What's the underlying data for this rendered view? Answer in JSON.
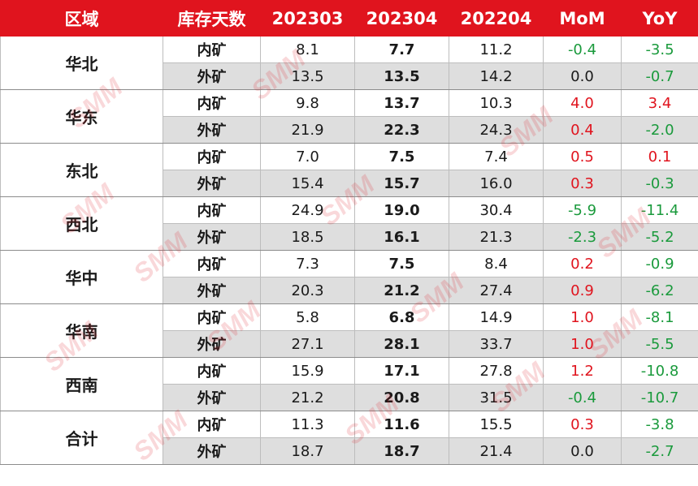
{
  "header": {
    "region": "区域",
    "type": "库存天数",
    "col1": "202303",
    "col2": "202304",
    "col3": "202204",
    "mom": "MoM",
    "yoy": "YoY"
  },
  "groups": [
    {
      "region": "华北",
      "rows": [
        {
          "type": "内矿",
          "v1": "8.1",
          "v2": "7.7",
          "v3": "11.2",
          "mom": "-0.4",
          "yoy": "-3.5"
        },
        {
          "type": "外矿",
          "v1": "13.5",
          "v2": "13.5",
          "v3": "14.2",
          "mom": "0.0",
          "yoy": "-0.7"
        }
      ]
    },
    {
      "region": "华东",
      "rows": [
        {
          "type": "内矿",
          "v1": "9.8",
          "v2": "13.7",
          "v3": "10.3",
          "mom": "4.0",
          "yoy": "3.4"
        },
        {
          "type": "外矿",
          "v1": "21.9",
          "v2": "22.3",
          "v3": "24.3",
          "mom": "0.4",
          "yoy": "-2.0"
        }
      ]
    },
    {
      "region": "东北",
      "rows": [
        {
          "type": "内矿",
          "v1": "7.0",
          "v2": "7.5",
          "v3": "7.4",
          "mom": "0.5",
          "yoy": "0.1"
        },
        {
          "type": "外矿",
          "v1": "15.4",
          "v2": "15.7",
          "v3": "16.0",
          "mom": "0.3",
          "yoy": "-0.3"
        }
      ]
    },
    {
      "region": "西北",
      "rows": [
        {
          "type": "内矿",
          "v1": "24.9",
          "v2": "19.0",
          "v3": "30.4",
          "mom": "-5.9",
          "yoy": "-11.4"
        },
        {
          "type": "外矿",
          "v1": "18.5",
          "v2": "16.1",
          "v3": "21.3",
          "mom": "-2.3",
          "yoy": "-5.2"
        }
      ]
    },
    {
      "region": "华中",
      "rows": [
        {
          "type": "内矿",
          "v1": "7.3",
          "v2": "7.5",
          "v3": "8.4",
          "mom": "0.2",
          "yoy": "-0.9"
        },
        {
          "type": "外矿",
          "v1": "20.3",
          "v2": "21.2",
          "v3": "27.4",
          "mom": "0.9",
          "yoy": "-6.2"
        }
      ]
    },
    {
      "region": "华南",
      "rows": [
        {
          "type": "内矿",
          "v1": "5.8",
          "v2": "6.8",
          "v3": "14.9",
          "mom": "1.0",
          "yoy": "-8.1"
        },
        {
          "type": "外矿",
          "v1": "27.1",
          "v2": "28.1",
          "v3": "33.7",
          "mom": "1.0",
          "yoy": "-5.5"
        }
      ]
    },
    {
      "region": "西南",
      "rows": [
        {
          "type": "内矿",
          "v1": "15.9",
          "v2": "17.1",
          "v3": "27.8",
          "mom": "1.2",
          "yoy": "-10.8"
        },
        {
          "type": "外矿",
          "v1": "21.2",
          "v2": "20.8",
          "v3": "31.5",
          "mom": "-0.4",
          "yoy": "-10.7"
        }
      ]
    },
    {
      "region": "合计",
      "rows": [
        {
          "type": "内矿",
          "v1": "11.3",
          "v2": "11.6",
          "v3": "15.5",
          "mom": "0.3",
          "yoy": "-3.8"
        },
        {
          "type": "外矿",
          "v1": "18.7",
          "v2": "18.7",
          "v3": "21.4",
          "mom": "0.0",
          "yoy": "-2.7"
        }
      ]
    }
  ],
  "colors": {
    "header_bg": "#e0141e",
    "positive": "#e0141e",
    "negative": "#1a9a3c",
    "row_alt": "#dedede"
  },
  "watermark": {
    "text": "SMM",
    "icon": "smm-logo-watermark-icon"
  }
}
